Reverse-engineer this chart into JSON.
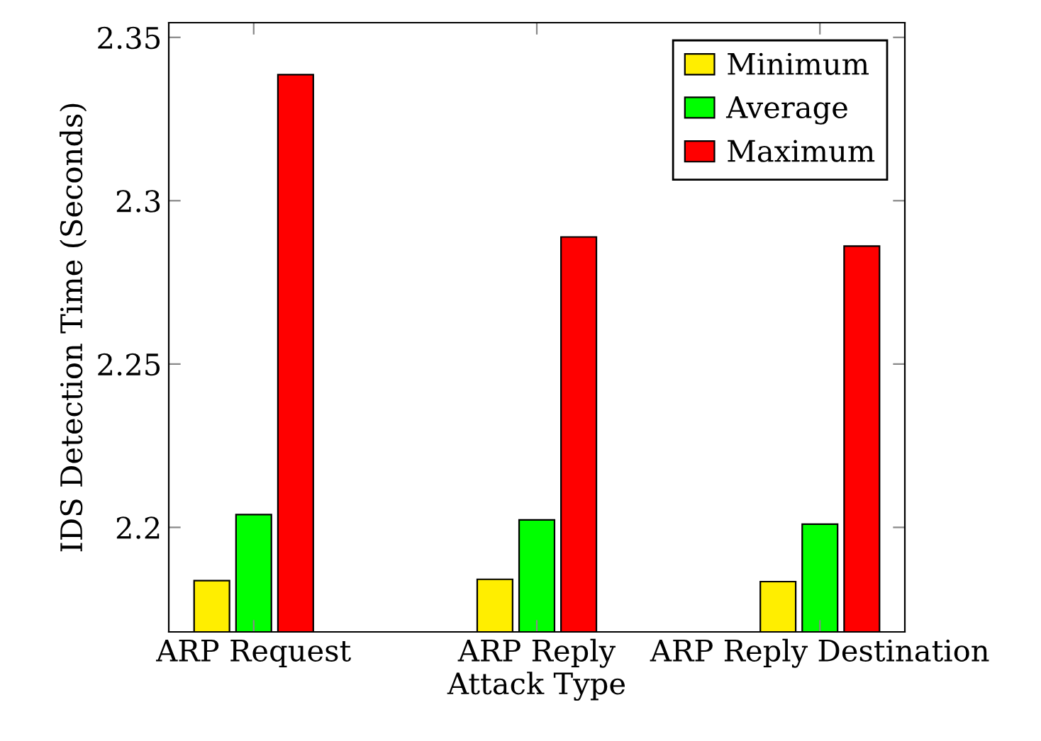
{
  "chart_data": {
    "type": "bar",
    "xlabel": "Attack Type",
    "ylabel": "IDS Detection Time (Seconds)",
    "categories": [
      "ARP Request",
      "ARP Reply",
      "ARP Reply Destination"
    ],
    "series": [
      {
        "name": "Minimum",
        "color": "#ffee00",
        "values": [
          2.1837,
          2.1841,
          2.1834
        ]
      },
      {
        "name": "Average",
        "color": "#00ff00",
        "values": [
          2.2039,
          2.2023,
          2.201
        ]
      },
      {
        "name": "Maximum",
        "color": "#ff0000",
        "values": [
          2.3386,
          2.2889,
          2.2861
        ]
      }
    ],
    "ylim": [
      2.168,
      2.3545
    ],
    "yticks": [
      2.2,
      2.25,
      2.3,
      2.35
    ],
    "grid": false,
    "legend": "top right"
  }
}
